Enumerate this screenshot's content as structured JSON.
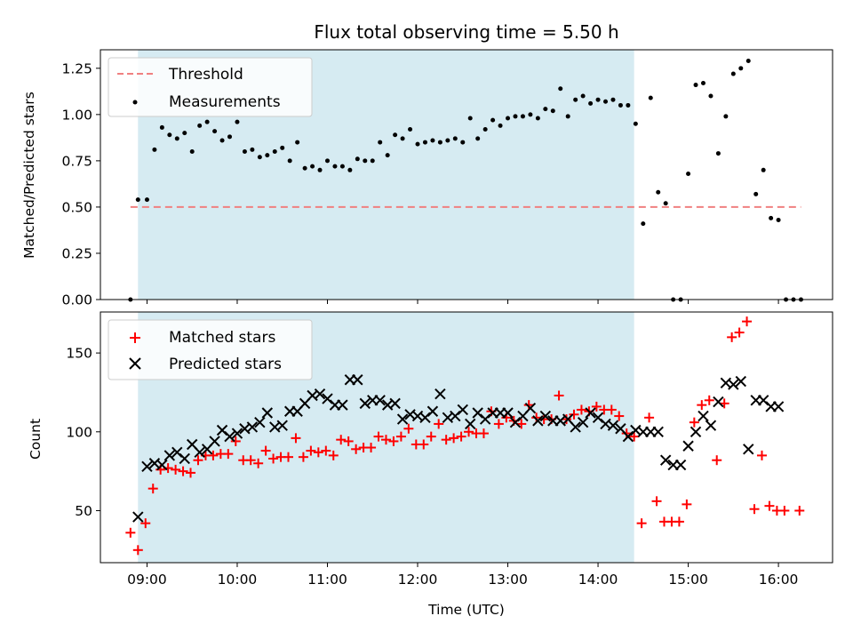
{
  "chart_data": [
    {
      "type": "scatter",
      "title": "Flux total observing time = 5.50 h",
      "xlabel": "",
      "ylabel": "Matched/Predicted stars",
      "xlim": [
        "08:29",
        "16:36"
      ],
      "ylim": [
        0,
        1.35
      ],
      "yticks": [
        "0.00",
        "0.25",
        "0.50",
        "0.75",
        "1.00",
        "1.25"
      ],
      "shaded_region": {
        "start": "08:54",
        "end": "14:24",
        "color": "#add8e6"
      },
      "legend_position": "top-left",
      "series": [
        {
          "name": "Threshold",
          "kind": "dashed-line",
          "color": "#f08080",
          "x": [
            "08:49",
            "16:15"
          ],
          "y": [
            0.5,
            0.5
          ]
        },
        {
          "name": "Measurements",
          "kind": "points",
          "color": "#000000",
          "x": [
            "08:49",
            "08:54",
            "09:00",
            "09:05",
            "09:10",
            "09:15",
            "09:20",
            "09:25",
            "09:30",
            "09:35",
            "09:40",
            "09:45",
            "09:50",
            "09:55",
            "10:00",
            "10:05",
            "10:10",
            "10:15",
            "10:20",
            "10:25",
            "10:30",
            "10:35",
            "10:40",
            "10:45",
            "10:50",
            "10:55",
            "11:00",
            "11:05",
            "11:10",
            "11:15",
            "11:20",
            "11:25",
            "11:30",
            "11:35",
            "11:40",
            "11:45",
            "11:50",
            "11:55",
            "12:00",
            "12:05",
            "12:10",
            "12:15",
            "12:20",
            "12:25",
            "12:30",
            "12:35",
            "12:40",
            "12:45",
            "12:50",
            "12:55",
            "13:00",
            "13:05",
            "13:10",
            "13:15",
            "13:20",
            "13:25",
            "13:30",
            "13:35",
            "13:40",
            "13:45",
            "13:50",
            "13:55",
            "14:00",
            "14:05",
            "14:10",
            "14:15",
            "14:20",
            "14:25",
            "14:30",
            "14:35",
            "14:40",
            "14:45",
            "14:50",
            "14:55",
            "15:00",
            "15:05",
            "15:10",
            "15:15",
            "15:20",
            "15:25",
            "15:30",
            "15:35",
            "15:40",
            "15:45",
            "15:50",
            "15:55",
            "16:00",
            "16:05",
            "16:10",
            "16:15"
          ],
          "y": [
            0.0,
            0.54,
            0.54,
            0.81,
            0.93,
            0.89,
            0.87,
            0.9,
            0.8,
            0.94,
            0.96,
            0.91,
            0.86,
            0.88,
            0.96,
            0.8,
            0.81,
            0.77,
            0.78,
            0.8,
            0.82,
            0.75,
            0.85,
            0.71,
            0.72,
            0.7,
            0.75,
            0.72,
            0.72,
            0.7,
            0.76,
            0.75,
            0.75,
            0.85,
            0.78,
            0.89,
            0.87,
            0.92,
            0.84,
            0.85,
            0.86,
            0.85,
            0.86,
            0.87,
            0.85,
            0.98,
            0.87,
            0.92,
            0.97,
            0.94,
            0.98,
            0.99,
            0.99,
            1.0,
            0.98,
            1.03,
            1.02,
            1.14,
            0.99,
            1.08,
            1.1,
            1.06,
            1.08,
            1.07,
            1.08,
            1.05,
            1.05,
            0.95,
            0.41,
            1.09,
            0.58,
            0.52,
            0.0,
            0.0,
            0.68,
            1.16,
            1.17,
            1.1,
            0.79,
            0.99,
            1.22,
            1.25,
            1.29,
            0.57,
            0.7,
            0.44,
            0.43,
            0.0,
            0.0,
            0.0
          ]
        }
      ]
    },
    {
      "type": "scatter",
      "title": "",
      "xlabel": "Time (UTC)",
      "ylabel": "Count",
      "xlim": [
        "08:29",
        "16:36"
      ],
      "xticks": [
        "09:00",
        "10:00",
        "11:00",
        "12:00",
        "13:00",
        "14:00",
        "15:00",
        "16:00"
      ],
      "ylim": [
        17,
        176
      ],
      "yticks": [
        "50",
        "100",
        "150"
      ],
      "shaded_region": {
        "start": "08:54",
        "end": "14:24",
        "color": "#add8e6"
      },
      "legend_position": "top-left",
      "series": [
        {
          "name": "Matched stars",
          "kind": "plus",
          "color": "#ff0000",
          "x": [
            "08:49",
            "08:54",
            "08:59",
            "09:04",
            "09:09",
            "09:14",
            "09:19",
            "09:24",
            "09:29",
            "09:34",
            "09:39",
            "09:44",
            "09:49",
            "09:54",
            "09:59",
            "10:04",
            "10:09",
            "10:14",
            "10:19",
            "10:24",
            "10:29",
            "10:34",
            "10:39",
            "10:44",
            "10:49",
            "10:54",
            "10:59",
            "11:04",
            "11:09",
            "11:14",
            "11:19",
            "11:24",
            "11:29",
            "11:34",
            "11:39",
            "11:44",
            "11:49",
            "11:54",
            "11:59",
            "12:04",
            "12:09",
            "12:14",
            "12:19",
            "12:24",
            "12:29",
            "12:34",
            "12:39",
            "12:44",
            "12:49",
            "12:54",
            "12:59",
            "13:04",
            "13:09",
            "13:14",
            "13:19",
            "13:24",
            "13:29",
            "13:34",
            "13:39",
            "13:44",
            "13:49",
            "13:54",
            "13:59",
            "14:04",
            "14:09",
            "14:14",
            "14:19",
            "14:24",
            "14:29",
            "14:34",
            "14:39",
            "14:44",
            "14:49",
            "14:54",
            "14:59",
            "15:04",
            "15:09",
            "15:14",
            "15:19",
            "15:24",
            "15:29",
            "15:34",
            "15:39",
            "15:44",
            "15:49",
            "15:54",
            "15:59",
            "16:04",
            "16:14"
          ],
          "y": [
            36,
            25,
            42,
            64,
            76,
            77,
            76,
            75,
            74,
            82,
            85,
            85,
            86,
            86,
            94,
            82,
            82,
            80,
            88,
            83,
            84,
            84,
            96,
            84,
            88,
            87,
            88,
            85,
            95,
            94,
            89,
            90,
            90,
            97,
            95,
            94,
            97,
            102,
            92,
            92,
            97,
            105,
            95,
            96,
            97,
            100,
            99,
            99,
            113,
            105,
            109,
            107,
            105,
            117,
            109,
            108,
            108,
            123,
            108,
            111,
            114,
            113,
            116,
            114,
            114,
            110,
            99,
            97,
            42,
            109,
            56,
            43,
            43,
            43,
            54,
            106,
            117,
            120,
            82,
            118,
            160,
            163,
            170,
            51,
            85,
            53,
            50,
            50,
            50
          ]
        },
        {
          "name": "Predicted stars",
          "kind": "cross",
          "color": "#000000",
          "x": [
            "08:54",
            "09:00",
            "09:05",
            "09:10",
            "09:15",
            "09:20",
            "09:25",
            "09:30",
            "09:35",
            "09:40",
            "09:45",
            "09:50",
            "09:55",
            "10:00",
            "10:05",
            "10:10",
            "10:15",
            "10:20",
            "10:25",
            "10:30",
            "10:35",
            "10:40",
            "10:45",
            "10:50",
            "10:55",
            "11:00",
            "11:05",
            "11:10",
            "11:15",
            "11:20",
            "11:25",
            "11:30",
            "11:35",
            "11:40",
            "11:45",
            "11:50",
            "11:55",
            "12:00",
            "12:05",
            "12:10",
            "12:15",
            "12:20",
            "12:25",
            "12:30",
            "12:35",
            "12:40",
            "12:45",
            "12:50",
            "12:55",
            "13:00",
            "13:05",
            "13:10",
            "13:15",
            "13:20",
            "13:25",
            "13:30",
            "13:35",
            "13:40",
            "13:45",
            "13:50",
            "13:55",
            "14:00",
            "14:05",
            "14:10",
            "14:15",
            "14:20",
            "14:25",
            "14:30",
            "14:35",
            "14:40",
            "14:45",
            "14:50",
            "14:55",
            "15:00",
            "15:05",
            "15:10",
            "15:15",
            "15:20",
            "15:25",
            "15:30",
            "15:35",
            "15:40",
            "15:45",
            "15:50",
            "15:55",
            "16:00"
          ],
          "y": [
            46,
            78,
            80,
            79,
            85,
            87,
            83,
            92,
            87,
            89,
            94,
            101,
            97,
            99,
            102,
            103,
            106,
            112,
            103,
            104,
            113,
            113,
            118,
            123,
            124,
            121,
            117,
            117,
            133,
            133,
            118,
            120,
            120,
            117,
            118,
            108,
            111,
            110,
            109,
            113,
            124,
            109,
            110,
            114,
            105,
            112,
            108,
            112,
            112,
            112,
            106,
            110,
            115,
            107,
            110,
            107,
            107,
            108,
            103,
            106,
            112,
            109,
            105,
            104,
            102,
            97,
            101,
            100,
            100,
            100,
            82,
            79,
            79,
            91,
            100,
            110,
            104,
            119,
            131,
            130,
            132,
            89,
            120,
            120,
            116,
            116
          ]
        }
      ]
    }
  ]
}
